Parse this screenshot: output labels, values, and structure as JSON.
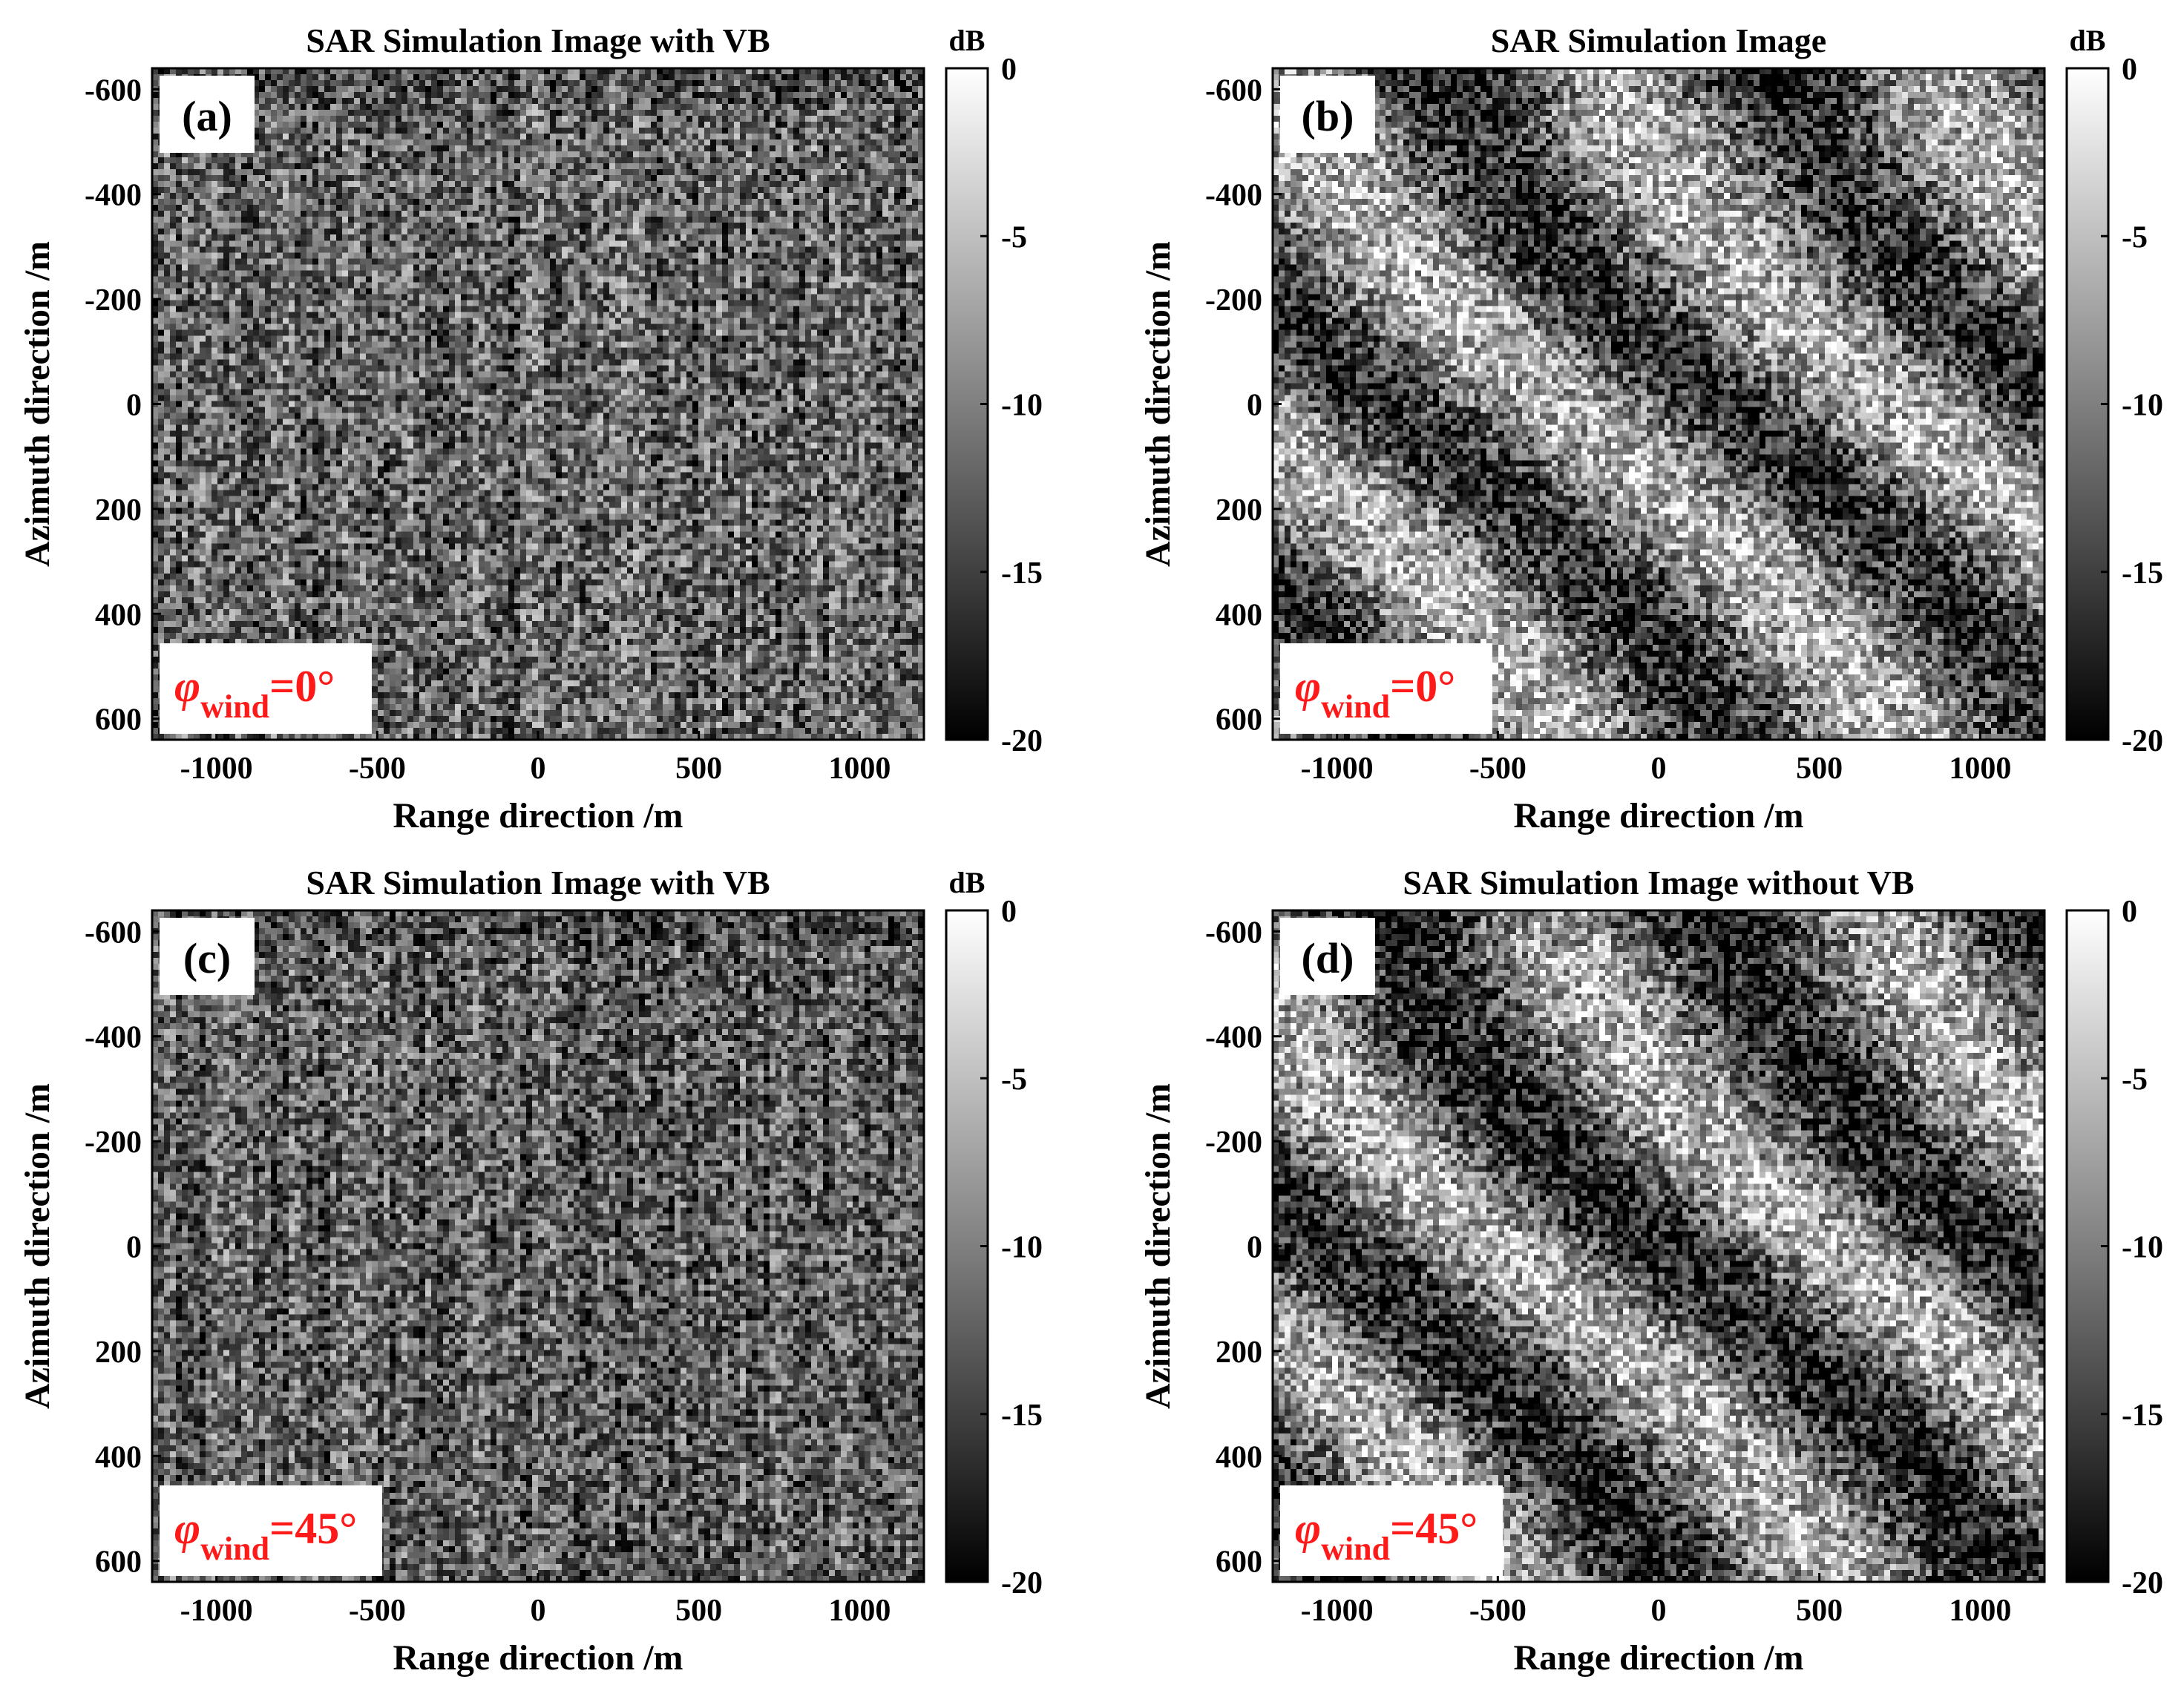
{
  "chart_data": [
    {
      "panel": "(a)",
      "type": "heatmap",
      "title": "SAR Simulation Image with VB",
      "xlabel": "Range direction /m",
      "ylabel": "Azimuth direction /m",
      "xlim": [
        -1200,
        1200
      ],
      "ylim": [
        -640,
        640
      ],
      "y_reversed": true,
      "xticks": [
        -1000,
        -500,
        0,
        500,
        1000
      ],
      "yticks": [
        -600,
        -400,
        -200,
        0,
        200,
        400,
        600
      ],
      "colorbar": {
        "unit": "dB",
        "range": [
          -20,
          0
        ],
        "ticks": [
          0,
          -5,
          -10,
          -15,
          -20
        ],
        "colormap": "gray"
      },
      "annotation": {
        "symbol": "φ",
        "subscript": "wind",
        "value": "=0°"
      },
      "texture": {
        "mean_brightness": 0.4,
        "contrast": 0.34,
        "streak_direction": "azimuth",
        "streak_strength": 0.1,
        "wave_strength": 0.0
      }
    },
    {
      "panel": "(b)",
      "type": "heatmap",
      "title": "SAR Simulation Image",
      "xlabel": "Range direction /m",
      "ylabel": "Azimuth direction /m",
      "xlim": [
        -1200,
        1200
      ],
      "ylim": [
        -640,
        640
      ],
      "y_reversed": true,
      "xticks": [
        -1000,
        -500,
        0,
        500,
        1000
      ],
      "yticks": [
        -600,
        -400,
        -200,
        0,
        200,
        400,
        600
      ],
      "colorbar": {
        "unit": "dB",
        "range": [
          -20,
          0
        ],
        "ticks": [
          0,
          -5,
          -10,
          -15,
          -20
        ],
        "colormap": "gray"
      },
      "annotation": {
        "symbol": "φ",
        "subscript": "wind",
        "value": "=0°"
      },
      "texture": {
        "mean_brightness": 0.45,
        "contrast": 0.38,
        "streak_direction": "none",
        "streak_strength": 0.0,
        "wave_strength": 0.35
      }
    },
    {
      "panel": "(c)",
      "type": "heatmap",
      "title": "SAR Simulation Image with VB",
      "xlabel": "Range direction /m",
      "ylabel": "Azimuth direction /m",
      "xlim": [
        -1200,
        1200
      ],
      "ylim": [
        -640,
        640
      ],
      "y_reversed": true,
      "xticks": [
        -1000,
        -500,
        0,
        500,
        1000
      ],
      "yticks": [
        -600,
        -400,
        -200,
        0,
        200,
        400,
        600
      ],
      "colorbar": {
        "unit": "dB",
        "range": [
          -20,
          0
        ],
        "ticks": [
          0,
          -5,
          -10,
          -15,
          -20
        ],
        "colormap": "gray"
      },
      "annotation": {
        "symbol": "φ",
        "subscript": "wind",
        "value": "=45°"
      },
      "texture": {
        "mean_brightness": 0.37,
        "contrast": 0.33,
        "streak_direction": "azimuth",
        "streak_strength": 0.12,
        "wave_strength": 0.0
      }
    },
    {
      "panel": "(d)",
      "type": "heatmap",
      "title": "SAR Simulation Image without VB",
      "xlabel": "Range direction /m",
      "ylabel": "Azimuth direction /m",
      "xlim": [
        -1200,
        1200
      ],
      "ylim": [
        -640,
        640
      ],
      "y_reversed": true,
      "xticks": [
        -1000,
        -500,
        0,
        500,
        1000
      ],
      "yticks": [
        -600,
        -400,
        -200,
        0,
        200,
        400,
        600
      ],
      "colorbar": {
        "unit": "",
        "range": [
          -20,
          0
        ],
        "ticks": [
          0,
          -5,
          -10,
          -15,
          -20
        ],
        "colormap": "gray"
      },
      "annotation": {
        "symbol": "φ",
        "subscript": "wind",
        "value": "=45°"
      },
      "texture": {
        "mean_brightness": 0.42,
        "contrast": 0.38,
        "streak_direction": "none",
        "streak_strength": 0.0,
        "wave_strength": 0.38
      }
    }
  ],
  "colors": {
    "annotation_text": "#ff1a1a",
    "axis": "#000000",
    "background": "#ffffff"
  }
}
